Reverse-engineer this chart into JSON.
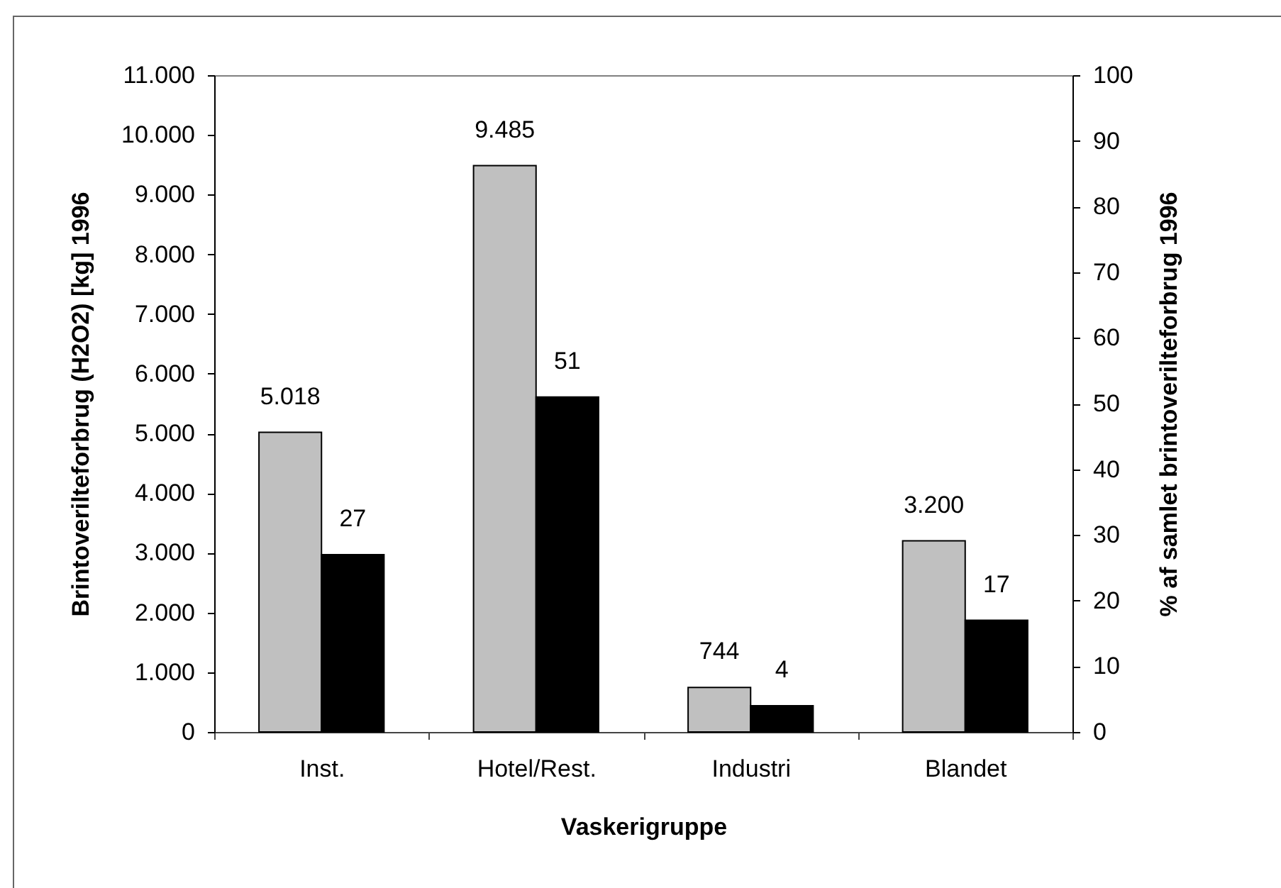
{
  "chart_data": {
    "type": "bar",
    "categories": [
      "Inst.",
      "Hotel/Rest.",
      "Industri",
      "Blandet"
    ],
    "xlabel": "Vaskerigruppe",
    "ylabel": "Brintoverilteforbrug (H2O2) [kg] 1996",
    "y2label": "% af samlet brintoverilteforbrug 1996",
    "series": [
      {
        "color": "#c0c0c0",
        "values": [
          5018,
          9485,
          744,
          3200
        ],
        "value_labels": [
          "5.018",
          "9.485",
          "744",
          "3.200"
        ]
      },
      {
        "color": "#000000",
        "axis": "y2",
        "values": [
          27,
          51,
          4,
          17
        ],
        "value_labels": [
          "27",
          "51",
          "4",
          "17"
        ]
      }
    ],
    "ylim": [
      0,
      11000
    ],
    "yticks": [
      0,
      {
        "value": 1000,
        "label": "1.000"
      },
      {
        "value": 2000,
        "label": "2.000"
      },
      {
        "value": 3000,
        "label": "3.000"
      },
      {
        "value": 4000,
        "label": "4.000"
      },
      {
        "value": 5000,
        "label": "5.000"
      },
      {
        "value": 6000,
        "label": "6.000"
      },
      {
        "value": 7000,
        "label": "7.000"
      },
      {
        "value": 8000,
        "label": "8.000"
      },
      {
        "value": 9000,
        "label": "9.000"
      },
      {
        "value": 10000,
        "label": "10.000"
      },
      {
        "value": 11000,
        "label": "11.000"
      }
    ],
    "y2lim": [
      0,
      100
    ],
    "y2ticks": [
      0,
      10,
      20,
      30,
      40,
      50,
      60,
      70,
      80,
      90,
      100
    ],
    "grid": false
  }
}
